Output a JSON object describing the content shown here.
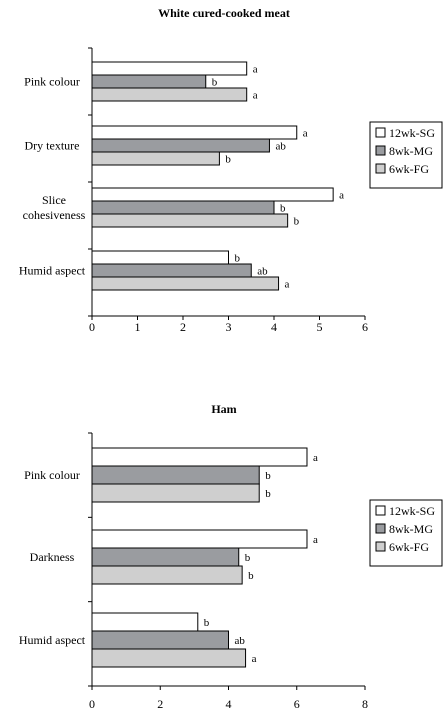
{
  "chart_data": [
    {
      "type": "bar",
      "orientation": "horizontal",
      "title": "White cured-cooked meat",
      "categories": [
        "Pink colour",
        "Dry texture",
        [
          "Slice",
          "cohesiveness"
        ],
        "Humid aspect"
      ],
      "xlim": [
        0,
        6
      ],
      "xticks": [
        "0",
        "1",
        "2",
        "3",
        "4",
        "5",
        "6"
      ],
      "legend_position": "right",
      "series": [
        {
          "name": "12wk-SG",
          "color": "#ffffff",
          "values": [
            3.4,
            4.5,
            5.3,
            3.0
          ],
          "labels": [
            "a",
            "a",
            "a",
            "b"
          ]
        },
        {
          "name": "8wk-MG",
          "color": "#9a9ca0",
          "values": [
            2.5,
            3.9,
            4.0,
            3.5
          ],
          "labels": [
            "b",
            "ab",
            "b",
            "ab"
          ]
        },
        {
          "name": "6wk-FG",
          "color": "#cfcfcf",
          "values": [
            3.4,
            2.8,
            4.3,
            4.1
          ],
          "labels": [
            "a",
            "b",
            "b",
            "a"
          ]
        }
      ]
    },
    {
      "type": "bar",
      "orientation": "horizontal",
      "title": "Ham",
      "categories": [
        "Pink colour",
        "Darkness",
        "Humid aspect"
      ],
      "xlim": [
        0,
        8
      ],
      "xticks": [
        "0",
        "2",
        "4",
        "6",
        "8"
      ],
      "legend_position": "right",
      "series": [
        {
          "name": "12wk-SG",
          "color": "#ffffff",
          "values": [
            6.3,
            6.3,
            3.1
          ],
          "labels": [
            "a",
            "a",
            "b"
          ]
        },
        {
          "name": "8wk-MG",
          "color": "#9a9ca0",
          "values": [
            4.9,
            4.3,
            4.0
          ],
          "labels": [
            "b",
            "b",
            "ab"
          ]
        },
        {
          "name": "6wk-FG",
          "color": "#cfcfcf",
          "values": [
            4.9,
            4.4,
            4.5
          ],
          "labels": [
            "b",
            "b",
            "a"
          ]
        }
      ]
    }
  ]
}
